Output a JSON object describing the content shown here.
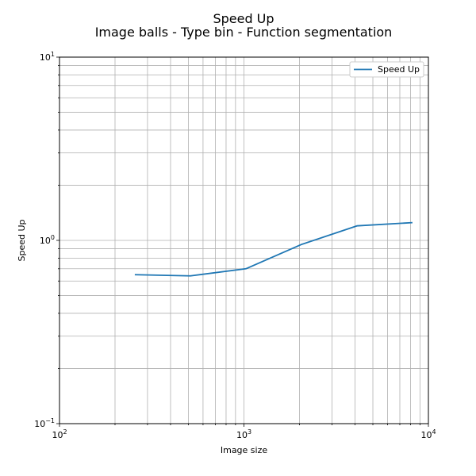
{
  "chart_data": {
    "type": "line",
    "title": "Speed Up",
    "subtitle": "Image balls - Type bin - Function segmentation",
    "xlabel": "Image size",
    "ylabel": "Speed Up",
    "xscale": "log",
    "yscale": "log",
    "xlim": [
      100,
      10000
    ],
    "ylim": [
      0.1,
      10
    ],
    "grid": "on",
    "legend_position": "upper-right",
    "x_ticks": [
      {
        "base": "10",
        "exp": "2"
      },
      {
        "base": "10",
        "exp": "3"
      },
      {
        "base": "10",
        "exp": "4"
      }
    ],
    "y_ticks": [
      {
        "base": "10",
        "exp": "−1"
      },
      {
        "base": "10",
        "exp": "0"
      },
      {
        "base": "10",
        "exp": "1"
      }
    ],
    "series": [
      {
        "name": "Speed Up",
        "color": "#1f77b4",
        "x": [
          256,
          512,
          1024,
          2048,
          4096,
          8192
        ],
        "y": [
          0.65,
          0.64,
          0.7,
          0.95,
          1.2,
          1.25
        ]
      }
    ]
  }
}
